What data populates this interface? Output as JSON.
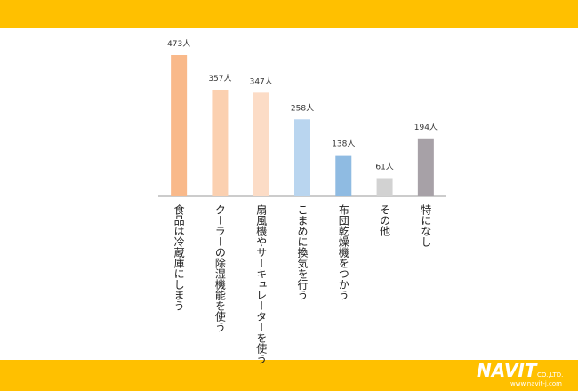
{
  "chart_data": {
    "type": "bar",
    "categories": [
      "食品は冷蔵庫にしまう",
      "クーラーの除湿機能を使う",
      "扇風機やサーキュレーターを使う",
      "こまめに換気を行う",
      "布団乾燥機をつかう",
      "その他",
      "特になし"
    ],
    "values": [
      473,
      357,
      347,
      258,
      138,
      61,
      194
    ],
    "value_labels": [
      "473人",
      "357人",
      "347人",
      "258人",
      "138人",
      "61人",
      "194人"
    ],
    "colors": [
      "#f9b98a",
      "#fbd0b0",
      "#fcdcc6",
      "#b9d5ef",
      "#8fbbe2",
      "#d2d2d2",
      "#a7a1a7"
    ]
  },
  "footer": {
    "logo": "NAVIT",
    "company": "CO.,LTD.",
    "url": "www.navit-j.com"
  }
}
